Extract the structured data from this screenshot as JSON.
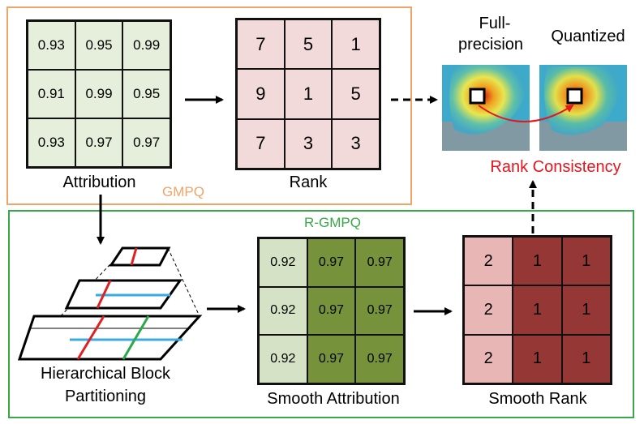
{
  "attribution": {
    "label": "Attribution",
    "values": [
      [
        "0.93",
        "0.95",
        "0.99"
      ],
      [
        "0.91",
        "0.99",
        "0.95"
      ],
      [
        "0.93",
        "0.97",
        "0.97"
      ]
    ]
  },
  "rank": {
    "label": "Rank",
    "values": [
      [
        "7",
        "5",
        "1"
      ],
      [
        "9",
        "1",
        "5"
      ],
      [
        "7",
        "3",
        "3"
      ]
    ]
  },
  "gmpq": {
    "label": "GMPQ",
    "color": "#f0a468"
  },
  "rgmpq": {
    "label": "R-GMPQ",
    "color": "#38a84a"
  },
  "partitioning": {
    "label_line1": "Hierarchical Block",
    "label_line2": "Partitioning"
  },
  "smooth_attribution": {
    "label": "Smooth Attribution",
    "values": [
      [
        "0.92",
        "0.97",
        "0.97"
      ],
      [
        "0.92",
        "0.97",
        "0.97"
      ],
      [
        "0.92",
        "0.97",
        "0.97"
      ]
    ]
  },
  "smooth_rank": {
    "label": "Smooth Rank",
    "values": [
      [
        "2",
        "1",
        "1"
      ],
      [
        "2",
        "1",
        "1"
      ],
      [
        "2",
        "1",
        "1"
      ]
    ]
  },
  "heatmaps": {
    "full_precision_line1": "Full-",
    "full_precision_line2": "precision",
    "quantized": "Quantized"
  },
  "rank_consistency": {
    "label": "Rank Consistency",
    "color": "#e8141c"
  }
}
